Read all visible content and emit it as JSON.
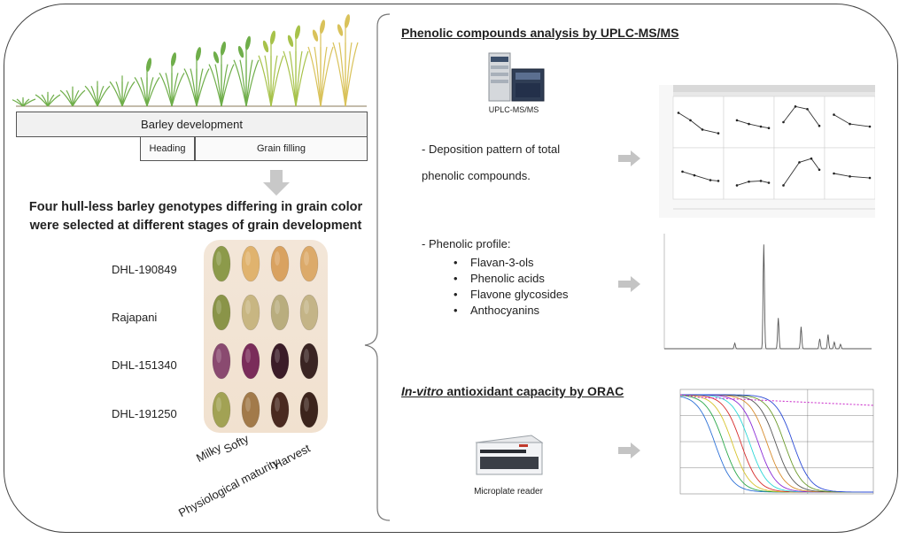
{
  "left_panel": {
    "timeline_label": "Barley development",
    "heading_label": "Heading",
    "grain_filling_label": "Grain filling",
    "title_line1": "Four hull-less barley genotypes differing in grain color",
    "title_line2": "were selected at different stages of grain development",
    "genotypes": [
      "DHL-190849",
      "Rajapani",
      "DHL-151340",
      "DHL-191250"
    ],
    "stages": [
      "Milky",
      "Softy",
      "Physiological maturity",
      "Harvest"
    ],
    "grain_colors": [
      [
        "#8c9a4a",
        "#e0b36e",
        "#d9a260",
        "#dcaa6a"
      ],
      [
        "#8a9448",
        "#c8b682",
        "#b9ad7e",
        "#c4b487"
      ],
      [
        "#8a4a70",
        "#7a2c5a",
        "#3b1c28",
        "#3a2422"
      ],
      [
        "#a2a254",
        "#a27a4a",
        "#4a2a20",
        "#3c241c"
      ]
    ]
  },
  "right_panel": {
    "section1_title": "Phenolic compounds analysis by UPLC-MS/MS",
    "uplc_label": "UPLC-MS/MS",
    "deposition_line1": "- Deposition pattern of total",
    "deposition_line2": "phenolic compounds.",
    "profile_heading": "- Phenolic profile:",
    "profile_items": [
      "Flavan-3-ols",
      "Phenolic acids",
      "Flavone glycosides",
      "Anthocyanins"
    ],
    "section2_title_italic": "In-vitro",
    "section2_title_rest": " antioxidant capacity by ORAC",
    "microplate_label": "Microplate reader"
  },
  "colors": {
    "frame": "#444444",
    "arrow": "#bdbdbd",
    "orac_plateau": "#cc33cc",
    "chromatogram_line": "#555555"
  }
}
